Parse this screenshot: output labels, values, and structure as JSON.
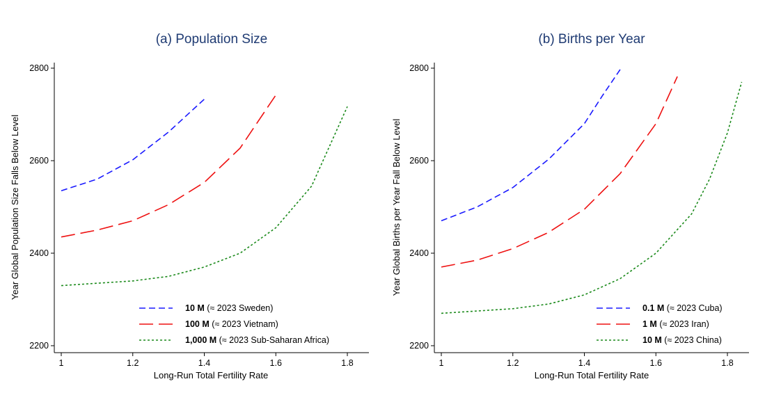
{
  "chart_data": [
    {
      "type": "line",
      "title": "(a) Population Size",
      "xlabel": "Long-Run Total Fertility Rate",
      "ylabel": "Year Global Population Size Falls Below Level",
      "xlim": [
        1.0,
        1.85
      ],
      "ylim": [
        2200,
        2800
      ],
      "xticks": [
        "1",
        "1.2",
        "1.4",
        "1.6",
        "1.8"
      ],
      "yticks": [
        "2200",
        "2400",
        "2600",
        "2800"
      ],
      "grid": false,
      "legend_position": "bottom-right",
      "series": [
        {
          "name_bold": "10 M",
          "name_rest": " (≈ 2023 Sweden)",
          "color": "#1a1aff",
          "dash": "short",
          "x": [
            1.0,
            1.1,
            1.2,
            1.3,
            1.4
          ],
          "y": [
            2535,
            2560,
            2602,
            2662,
            2733
          ]
        },
        {
          "name_bold": "100 M",
          "name_rest": " (≈ 2023 Vietnam)",
          "color": "#ee1111",
          "dash": "long",
          "x": [
            1.0,
            1.1,
            1.2,
            1.3,
            1.4,
            1.5,
            1.6
          ],
          "y": [
            2435,
            2450,
            2470,
            2505,
            2553,
            2627,
            2742
          ]
        },
        {
          "name_bold": "1,000 M",
          "name_rest": " (≈ 2023 Sub-Saharan Africa)",
          "color": "#1b8a1b",
          "dash": "dot",
          "x": [
            1.0,
            1.1,
            1.2,
            1.3,
            1.4,
            1.5,
            1.6,
            1.7,
            1.8
          ],
          "y": [
            2330,
            2335,
            2340,
            2350,
            2370,
            2400,
            2455,
            2545,
            2717
          ]
        }
      ]
    },
    {
      "type": "line",
      "title": "(b) Births per Year",
      "xlabel": "Long-Run Total Fertility Rate",
      "ylabel": "Year Global Births per Year Fall Below Level",
      "xlim": [
        1.0,
        1.85
      ],
      "ylim": [
        2200,
        2800
      ],
      "xticks": [
        "1",
        "1.2",
        "1.4",
        "1.6",
        "1.8"
      ],
      "yticks": [
        "2200",
        "2400",
        "2600",
        "2800"
      ],
      "grid": false,
      "legend_position": "bottom-right",
      "series": [
        {
          "name_bold": "0.1 M",
          "name_rest": " (≈ 2023 Cuba)",
          "color": "#1a1aff",
          "dash": "short",
          "x": [
            1.0,
            1.1,
            1.2,
            1.3,
            1.4,
            1.45,
            1.5
          ],
          "y": [
            2470,
            2500,
            2542,
            2603,
            2680,
            2740,
            2797
          ]
        },
        {
          "name_bold": "1 M",
          "name_rest": " (≈ 2023 Iran)",
          "color": "#ee1111",
          "dash": "long",
          "x": [
            1.0,
            1.1,
            1.2,
            1.3,
            1.4,
            1.5,
            1.6,
            1.66
          ],
          "y": [
            2370,
            2385,
            2410,
            2445,
            2495,
            2572,
            2680,
            2782
          ]
        },
        {
          "name_bold": "10 M",
          "name_rest": " (≈ 2023 China)",
          "color": "#1b8a1b",
          "dash": "dot",
          "x": [
            1.0,
            1.1,
            1.2,
            1.3,
            1.4,
            1.5,
            1.6,
            1.7,
            1.75,
            1.8,
            1.84
          ],
          "y": [
            2270,
            2275,
            2280,
            2290,
            2310,
            2345,
            2400,
            2485,
            2560,
            2660,
            2770
          ]
        }
      ]
    }
  ]
}
